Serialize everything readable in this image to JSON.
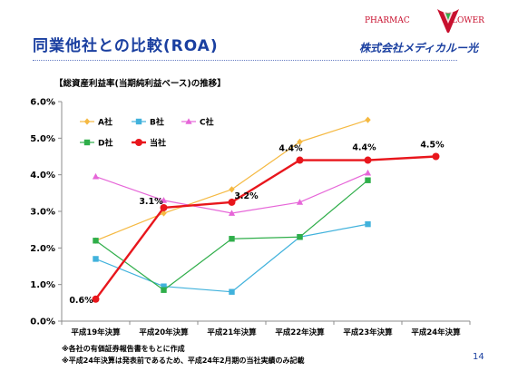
{
  "slide": {
    "title": "同業他社との比較(ROA)",
    "subtitle": "【総資産利益率(当期純利益ベース)の推移】",
    "page_number": "14",
    "logo": {
      "brand_left": "PHARMAC",
      "brand_right": "LOWER",
      "company": "株式会社メディカルー光"
    },
    "notes": [
      "※各社の有価証券報告書をもとに作成",
      "※平成24年決算は発表前であるため、平成24年2月期の当社実績のみ記載"
    ],
    "colors": {
      "title": "#1a3fa0",
      "logo_red": "#c8102e"
    }
  },
  "chart_data": {
    "type": "line",
    "title": "【総資産利益率(当期純利益ベース)の推移】",
    "categories": [
      "平成19年決算",
      "平成20年決算",
      "平成21年決算",
      "平成22年決算",
      "平成23年決算",
      "平成24年決算"
    ],
    "y_ticks": [
      "0.0%",
      "1.0%",
      "2.0%",
      "3.0%",
      "4.0%",
      "5.0%",
      "6.0%"
    ],
    "ylim": [
      0,
      6
    ],
    "y_unit": "%",
    "grid": false,
    "legend_position": "top-left",
    "series": [
      {
        "name": "A社",
        "values": [
          2.2,
          2.95,
          3.6,
          4.9,
          5.5,
          null
        ],
        "color": "#f5b942",
        "marker": "diamond"
      },
      {
        "name": "B社",
        "values": [
          1.7,
          0.95,
          0.8,
          2.3,
          2.65,
          null
        ],
        "color": "#41b2dc",
        "marker": "square"
      },
      {
        "name": "C社",
        "values": [
          3.95,
          3.3,
          2.95,
          3.25,
          4.05,
          null
        ],
        "color": "#e666d8",
        "marker": "triangle"
      },
      {
        "name": "D社",
        "values": [
          2.2,
          0.85,
          2.25,
          2.3,
          3.85,
          null
        ],
        "color": "#2fae4a",
        "marker": "square"
      },
      {
        "name": "当社",
        "values": [
          0.6,
          3.1,
          3.25,
          4.4,
          4.4,
          4.5
        ],
        "color": "#e8161c",
        "marker": "circle",
        "labels": [
          "0.6%",
          "3.1%",
          "3.2%",
          "4.4%",
          "4.4%",
          "4.5%"
        ]
      }
    ]
  }
}
